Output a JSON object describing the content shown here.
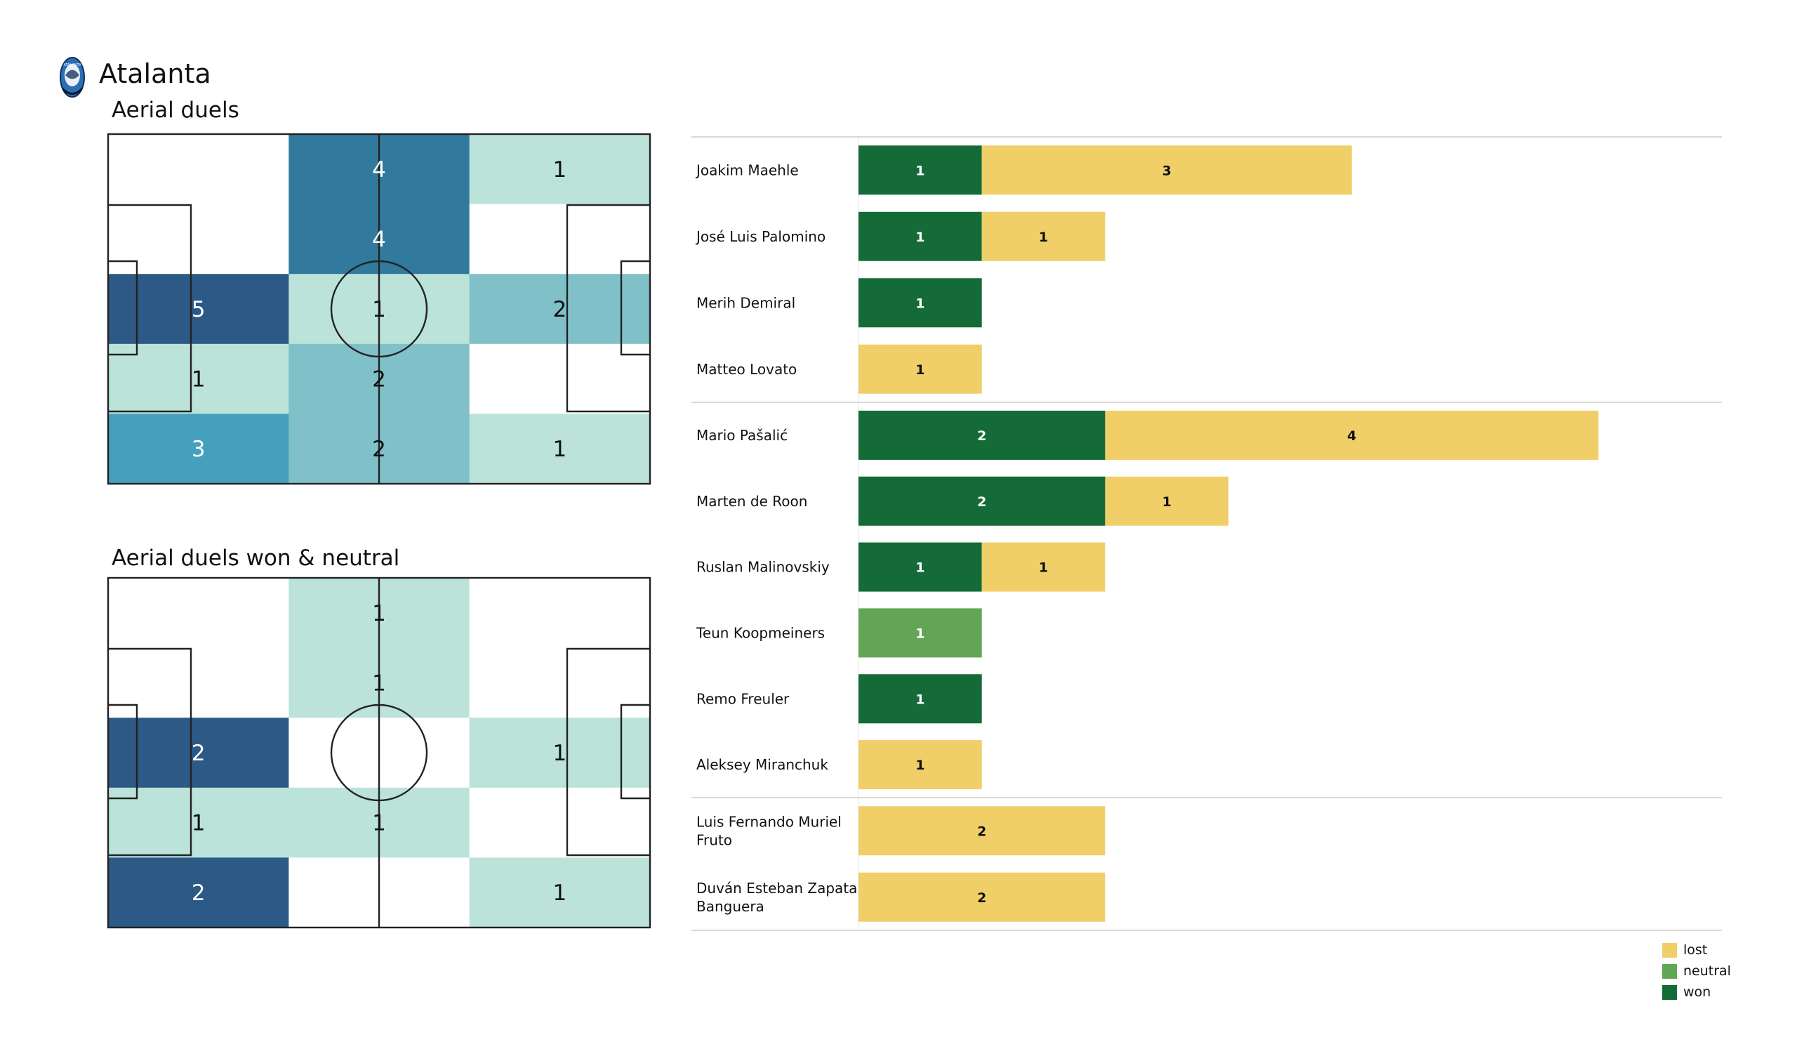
{
  "header": {
    "team_name": "Atalanta",
    "crest_icon": "atalanta-crest-icon"
  },
  "colors": {
    "won": "#156b37",
    "neutral": "#62a556",
    "lost": "#f0cf69",
    "heat_1": "#bbe3da",
    "heat_2": "#80c1c9",
    "heat_3": "#44a0bc",
    "heat_4": "#317a9e",
    "heat_5": "#2c5985",
    "pitch_line": "#222222",
    "separator": "#d9d9d9"
  },
  "chart_data": [
    {
      "type": "heatmap",
      "title": "Aerial duels",
      "grid": "3 columns x 5 rows over a pitch, attacking left-to-right",
      "columns": [
        "left third",
        "middle third",
        "right third"
      ],
      "rows": [
        "top",
        "upper",
        "center",
        "lower",
        "bottom"
      ],
      "values": [
        [
          null,
          4,
          1
        ],
        [
          null,
          4,
          null
        ],
        [
          5,
          1,
          2
        ],
        [
          1,
          2,
          null
        ],
        [
          3,
          2,
          1
        ]
      ],
      "color_max": 5
    },
    {
      "type": "heatmap",
      "title": "Aerial duels won & neutral",
      "grid": "3 columns x 5 rows over a pitch, attacking left-to-right",
      "columns": [
        "left third",
        "middle third",
        "right third"
      ],
      "rows": [
        "top",
        "upper",
        "center",
        "lower",
        "bottom"
      ],
      "values": [
        [
          null,
          1,
          null
        ],
        [
          null,
          1,
          null
        ],
        [
          2,
          null,
          1
        ],
        [
          1,
          1,
          null
        ],
        [
          2,
          null,
          1
        ]
      ],
      "color_max": 2
    },
    {
      "type": "bar",
      "orientation": "horizontal-stacked",
      "title": "",
      "xlabel": "",
      "ylabel": "",
      "stack_order": [
        "won",
        "neutral",
        "lost"
      ],
      "groups": [
        {
          "players": [
            {
              "name": "Joakim Maehle",
              "won": 1,
              "neutral": 0,
              "lost": 3
            },
            {
              "name": "José Luis Palomino",
              "won": 1,
              "neutral": 0,
              "lost": 1
            },
            {
              "name": "Merih Demiral",
              "won": 1,
              "neutral": 0,
              "lost": 0
            },
            {
              "name": "Matteo Lovato",
              "won": 0,
              "neutral": 0,
              "lost": 1
            }
          ]
        },
        {
          "players": [
            {
              "name": "Mario Pašalić",
              "won": 2,
              "neutral": 0,
              "lost": 4
            },
            {
              "name": "Marten de Roon",
              "won": 2,
              "neutral": 0,
              "lost": 1
            },
            {
              "name": "Ruslan Malinovskiy",
              "won": 1,
              "neutral": 0,
              "lost": 1
            },
            {
              "name": "Teun Koopmeiners",
              "won": 0,
              "neutral": 1,
              "lost": 0
            },
            {
              "name": "Remo Freuler",
              "won": 1,
              "neutral": 0,
              "lost": 0
            },
            {
              "name": "Aleksey Miranchuk",
              "won": 0,
              "neutral": 0,
              "lost": 1
            }
          ]
        },
        {
          "players": [
            {
              "name": "Luis Fernando Muriel Fruto",
              "name_lines": [
                "Luis Fernando Muriel",
                "Fruto"
              ],
              "won": 0,
              "neutral": 0,
              "lost": 2
            },
            {
              "name": "Duván Esteban Zapata Banguera",
              "name_lines": [
                "Duván Esteban Zapata",
                "Banguera"
              ],
              "won": 0,
              "neutral": 0,
              "lost": 2
            }
          ]
        }
      ],
      "legend": {
        "position": "bottom-right",
        "items": [
          {
            "key": "lost",
            "label": "lost"
          },
          {
            "key": "neutral",
            "label": "neutral"
          },
          {
            "key": "won",
            "label": "won"
          }
        ]
      }
    }
  ]
}
